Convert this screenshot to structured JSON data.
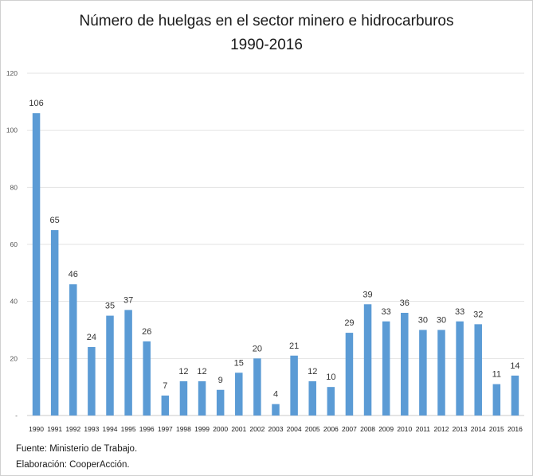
{
  "chart_data": {
    "type": "bar",
    "title": "Número de huelgas en el sector minero e hidrocarburos",
    "subtitle": "1990-2016",
    "xlabel": "",
    "ylabel": "",
    "ylim": [
      0,
      120
    ],
    "yticks": [
      "-",
      "20",
      "40",
      "60",
      "80",
      "100",
      "120"
    ],
    "grid": true,
    "legend": "none",
    "bar_color": "#5b9bd5",
    "categories": [
      "1990",
      "1991",
      "1992",
      "1993",
      "1994",
      "1995",
      "1996",
      "1997",
      "1998",
      "1999",
      "2000",
      "2001",
      "2002",
      "2003",
      "2004",
      "2005",
      "2006",
      "2007",
      "2008",
      "2009",
      "2010",
      "2011",
      "2012",
      "2013",
      "2014",
      "2015",
      "2016"
    ],
    "values": [
      106,
      65,
      46,
      24,
      35,
      37,
      26,
      7,
      12,
      12,
      9,
      15,
      20,
      4,
      21,
      12,
      10,
      29,
      39,
      33,
      36,
      30,
      30,
      33,
      32,
      11,
      14
    ]
  },
  "footer": {
    "source": "Fuente: Ministerio de Trabajo.",
    "credit": "Elaboración: CooperAcción."
  }
}
